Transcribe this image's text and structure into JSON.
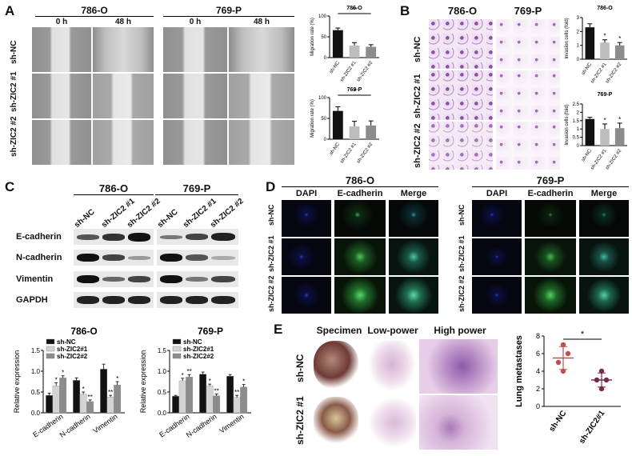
{
  "panels": {
    "A": "A",
    "B": "B",
    "C": "C",
    "D": "D",
    "E": "E"
  },
  "cell_lines": {
    "a": "786-O",
    "b": "769-P"
  },
  "panel_a": {
    "times": [
      "0 h",
      "48 h"
    ],
    "rows": [
      "sh-NC",
      "sh-ZIC2 #1",
      "sh-ZIC2 #2"
    ]
  },
  "panel_b": {
    "rows": [
      "sh-NC",
      "sh-ZIC2 #1",
      "sh-ZIC2 #2"
    ]
  },
  "panel_c": {
    "lanes": [
      "sh-NC",
      "sh-ZIC2 #1",
      "sh-ZIC2 #2"
    ],
    "proteins": [
      "E-cadherin",
      "N-cadherin",
      "Vimentin",
      "GAPDH"
    ]
  },
  "panel_d": {
    "channels": [
      "DAPI",
      "E-cadherin",
      "Merge"
    ],
    "rows": [
      "sh-NC",
      "sh-ZIC2 #1",
      "sh-ZIC2 #2"
    ]
  },
  "panel_e": {
    "cols": [
      "Specimen",
      "Low-power",
      "High power"
    ],
    "rows": [
      "sh-NC",
      "sh-ZIC2 #1"
    ]
  },
  "chart_data": [
    {
      "id": "migration-786O",
      "type": "bar",
      "title": "786-O",
      "categories": [
        "sh-NC",
        "sh-ZIC2 #1",
        "sh-ZIC2 #2"
      ],
      "values": [
        66,
        29,
        26
      ],
      "errors": [
        5,
        7,
        5
      ],
      "ylabel": "Migration rate (%)",
      "ylim": [
        0,
        100
      ],
      "yticks": [
        0,
        50,
        100
      ],
      "significance": [
        {
          "from": 0,
          "to": 2,
          "label": "**"
        }
      ],
      "colors": [
        "#111111",
        "#bdbdbd",
        "#8c8c8c"
      ]
    },
    {
      "id": "migration-769P",
      "type": "bar",
      "title": "769-P",
      "categories": [
        "sh-NC",
        "sh-ZIC2 #1",
        "sh-ZIC2 #2"
      ],
      "values": [
        68,
        31,
        33
      ],
      "errors": [
        10,
        12,
        11
      ],
      "ylabel": "Migration rate (%)",
      "ylim": [
        0,
        100
      ],
      "yticks": [
        0,
        50,
        100
      ],
      "significance": [
        {
          "from": 0,
          "to": 2,
          "label": "*"
        }
      ],
      "colors": [
        "#111111",
        "#bdbdbd",
        "#8c8c8c"
      ]
    },
    {
      "id": "invasion-786O",
      "type": "bar",
      "title": "786-O",
      "categories": [
        "sh-NC",
        "sh-ZIC2 #1",
        "sh-ZIC2 #2"
      ],
      "values": [
        2.3,
        1.2,
        1.0
      ],
      "errors": [
        0.25,
        0.2,
        0.2
      ],
      "ylabel": "Invasion cells (fold)",
      "ylim": [
        0,
        3
      ],
      "yticks": [
        0,
        1,
        2,
        3
      ],
      "bar_marks": [
        "",
        "*",
        "*"
      ],
      "colors": [
        "#111111",
        "#bdbdbd",
        "#8c8c8c"
      ]
    },
    {
      "id": "invasion-769P",
      "type": "bar",
      "title": "769-P",
      "categories": [
        "sh-NC",
        "sh-ZIC2 #1",
        "sh-ZIC2 #2"
      ],
      "values": [
        1.6,
        1.0,
        1.05
      ],
      "errors": [
        0.1,
        0.3,
        0.3
      ],
      "ylabel": "Invasion cells (fold)",
      "ylim": [
        0,
        2.5
      ],
      "yticks": [
        0.0,
        0.5,
        1.0,
        1.5,
        2.0,
        2.5
      ],
      "bar_marks": [
        "",
        "*",
        "*"
      ],
      "colors": [
        "#111111",
        "#bdbdbd",
        "#8c8c8c"
      ]
    },
    {
      "id": "wb-786O",
      "type": "bar",
      "title": "786-O",
      "categories": [
        "E-cadherin",
        "N-cadherin",
        "Vimentin"
      ],
      "series": [
        {
          "name": "sh-NC",
          "values": [
            0.42,
            0.78,
            1.05
          ],
          "errors": [
            0.05,
            0.06,
            0.12
          ],
          "marks": [
            "",
            "",
            ""
          ]
        },
        {
          "name": "sh-ZIC2#1",
          "values": [
            0.65,
            0.45,
            0.38
          ],
          "errors": [
            0.07,
            0.05,
            0.04
          ],
          "marks": [
            "*",
            "*",
            "**"
          ]
        },
        {
          "name": "sh-ZIC2#2",
          "values": [
            0.84,
            0.27,
            0.67
          ],
          "errors": [
            0.05,
            0.04,
            0.08
          ],
          "marks": [
            "*",
            "**",
            "*"
          ]
        }
      ],
      "ylabel": "Relative expression",
      "ylim": [
        0,
        1.5
      ],
      "yticks": [
        0.0,
        0.5,
        1.0,
        1.5
      ],
      "colors": [
        "#111111",
        "#d3d3d3",
        "#8c8c8c"
      ]
    },
    {
      "id": "wb-769P",
      "type": "bar",
      "title": "769-P",
      "categories": [
        "E-cadherin",
        "N-cadherin",
        "Vimentin"
      ],
      "series": [
        {
          "name": "sh-NC",
          "values": [
            0.4,
            0.93,
            0.88
          ],
          "errors": [
            0.02,
            0.05,
            0.04
          ],
          "marks": [
            "",
            "",
            ""
          ]
        },
        {
          "name": "sh-ZIC2#1",
          "values": [
            0.77,
            0.65,
            0.37
          ],
          "errors": [
            0.06,
            0.04,
            0.05
          ],
          "marks": [
            "*",
            "*",
            "**"
          ]
        },
        {
          "name": "sh-ZIC2#2",
          "values": [
            0.86,
            0.41,
            0.62
          ],
          "errors": [
            0.06,
            0.04,
            0.06
          ],
          "marks": [
            "**",
            "**",
            "*"
          ]
        }
      ],
      "ylabel": "Relative expression",
      "ylim": [
        0,
        1.5
      ],
      "yticks": [
        0.0,
        0.5,
        1.0,
        1.5
      ],
      "colors": [
        "#111111",
        "#d3d3d3",
        "#8c8c8c"
      ]
    },
    {
      "id": "lung-metastases",
      "type": "scatter",
      "categories": [
        "sh-NC",
        "sh-ZIC2#1"
      ],
      "points": [
        [
          4,
          5,
          6,
          7
        ],
        [
          2,
          3,
          3,
          4
        ]
      ],
      "means": [
        5.5,
        3
      ],
      "sd": [
        1.3,
        0.8
      ],
      "ylabel": "Lung metastases",
      "ylim": [
        0,
        8
      ],
      "yticks": [
        0,
        2,
        4,
        6,
        8
      ],
      "significance": [
        {
          "from": 0,
          "to": 1,
          "label": "*"
        }
      ],
      "colors": [
        "#c0504d",
        "#7a2a4a"
      ]
    }
  ]
}
